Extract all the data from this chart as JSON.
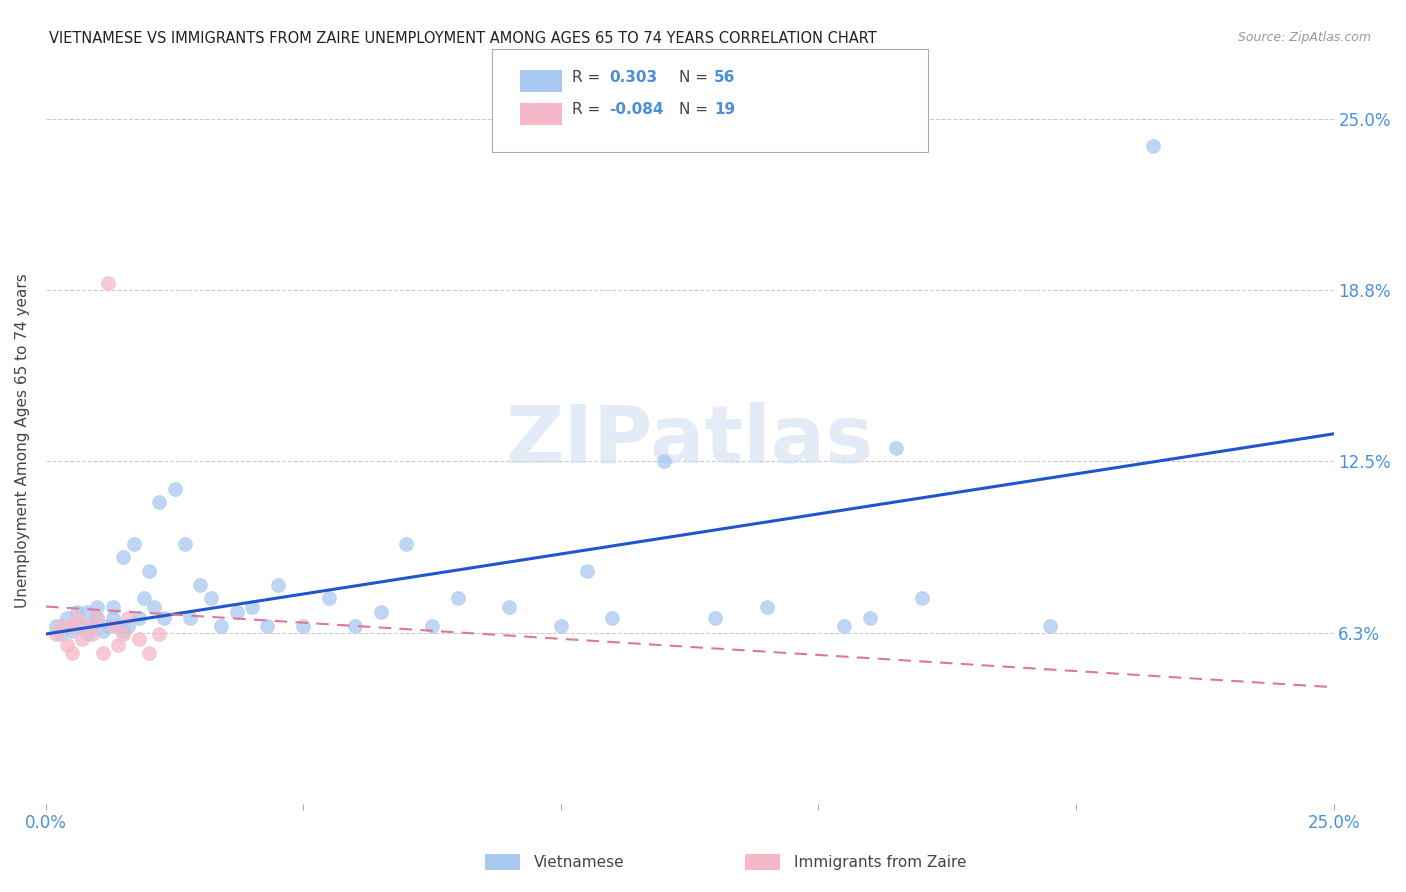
{
  "title": "VIETNAMESE VS IMMIGRANTS FROM ZAIRE UNEMPLOYMENT AMONG AGES 65 TO 74 YEARS CORRELATION CHART",
  "source": "Source: ZipAtlas.com",
  "ylabel": "Unemployment Among Ages 65 to 74 years",
  "xlim": [
    0.0,
    0.25
  ],
  "ylim": [
    0.0,
    0.265
  ],
  "yticks": [
    0.0,
    0.0625,
    0.125,
    0.1875,
    0.25
  ],
  "ytick_labels": [
    "",
    "6.3%",
    "12.5%",
    "18.8%",
    "25.0%"
  ],
  "xticks": [
    0.0,
    0.05,
    0.1,
    0.15,
    0.2,
    0.25
  ],
  "xtick_labels": [
    "0.0%",
    "",
    "",
    "",
    "",
    "25.0%"
  ],
  "legend_r_blue": "R = ",
  "legend_r_blue_val": "0.303",
  "legend_n_blue": "N = ",
  "legend_n_blue_val": "56",
  "legend_r_pink": "R = ",
  "legend_r_pink_val": "-0.084",
  "legend_n_pink": "N = ",
  "legend_n_pink_val": "19",
  "watermark": "ZIPatlas",
  "blue_color": "#a8c8f0",
  "pink_color": "#f5b8c8",
  "line_blue_color": "#2255cc",
  "line_pink_color": "#dd7799",
  "grid_color": "#cccccc",
  "title_color": "#222222",
  "axis_label_color": "#444444",
  "right_tick_color": "#4a90d9",
  "bottom_tick_color": "#4a90d9",
  "legend_num_color": "#4a90d9",
  "blue_scatter_x": [
    0.002,
    0.003,
    0.004,
    0.005,
    0.006,
    0.007,
    0.008,
    0.008,
    0.009,
    0.01,
    0.01,
    0.011,
    0.012,
    0.013,
    0.013,
    0.014,
    0.015,
    0.015,
    0.016,
    0.017,
    0.018,
    0.019,
    0.02,
    0.021,
    0.022,
    0.023,
    0.025,
    0.027,
    0.028,
    0.03,
    0.032,
    0.034,
    0.037,
    0.04,
    0.043,
    0.045,
    0.05,
    0.055,
    0.06,
    0.065,
    0.07,
    0.075,
    0.08,
    0.09,
    0.1,
    0.105,
    0.11,
    0.12,
    0.13,
    0.14,
    0.155,
    0.16,
    0.165,
    0.17,
    0.195,
    0.215
  ],
  "blue_scatter_y": [
    0.065,
    0.062,
    0.068,
    0.063,
    0.07,
    0.065,
    0.07,
    0.062,
    0.065,
    0.068,
    0.072,
    0.063,
    0.065,
    0.068,
    0.072,
    0.065,
    0.09,
    0.063,
    0.065,
    0.095,
    0.068,
    0.075,
    0.085,
    0.072,
    0.11,
    0.068,
    0.115,
    0.095,
    0.068,
    0.08,
    0.075,
    0.065,
    0.07,
    0.072,
    0.065,
    0.08,
    0.065,
    0.075,
    0.065,
    0.07,
    0.095,
    0.065,
    0.075,
    0.072,
    0.065,
    0.085,
    0.068,
    0.125,
    0.068,
    0.072,
    0.065,
    0.068,
    0.13,
    0.075,
    0.065,
    0.24
  ],
  "pink_scatter_x": [
    0.002,
    0.003,
    0.004,
    0.005,
    0.005,
    0.006,
    0.007,
    0.008,
    0.009,
    0.01,
    0.011,
    0.012,
    0.013,
    0.014,
    0.015,
    0.016,
    0.018,
    0.02,
    0.022
  ],
  "pink_scatter_y": [
    0.062,
    0.065,
    0.058,
    0.055,
    0.065,
    0.068,
    0.06,
    0.065,
    0.062,
    0.068,
    0.055,
    0.19,
    0.065,
    0.058,
    0.062,
    0.068,
    0.06,
    0.055,
    0.062
  ],
  "blue_line_x": [
    0.0,
    0.25
  ],
  "blue_line_y": [
    0.062,
    0.135
  ],
  "pink_line_x": [
    0.0,
    0.255
  ],
  "pink_line_y": [
    0.072,
    0.042
  ],
  "figsize": [
    14.06,
    8.92
  ],
  "dpi": 100
}
